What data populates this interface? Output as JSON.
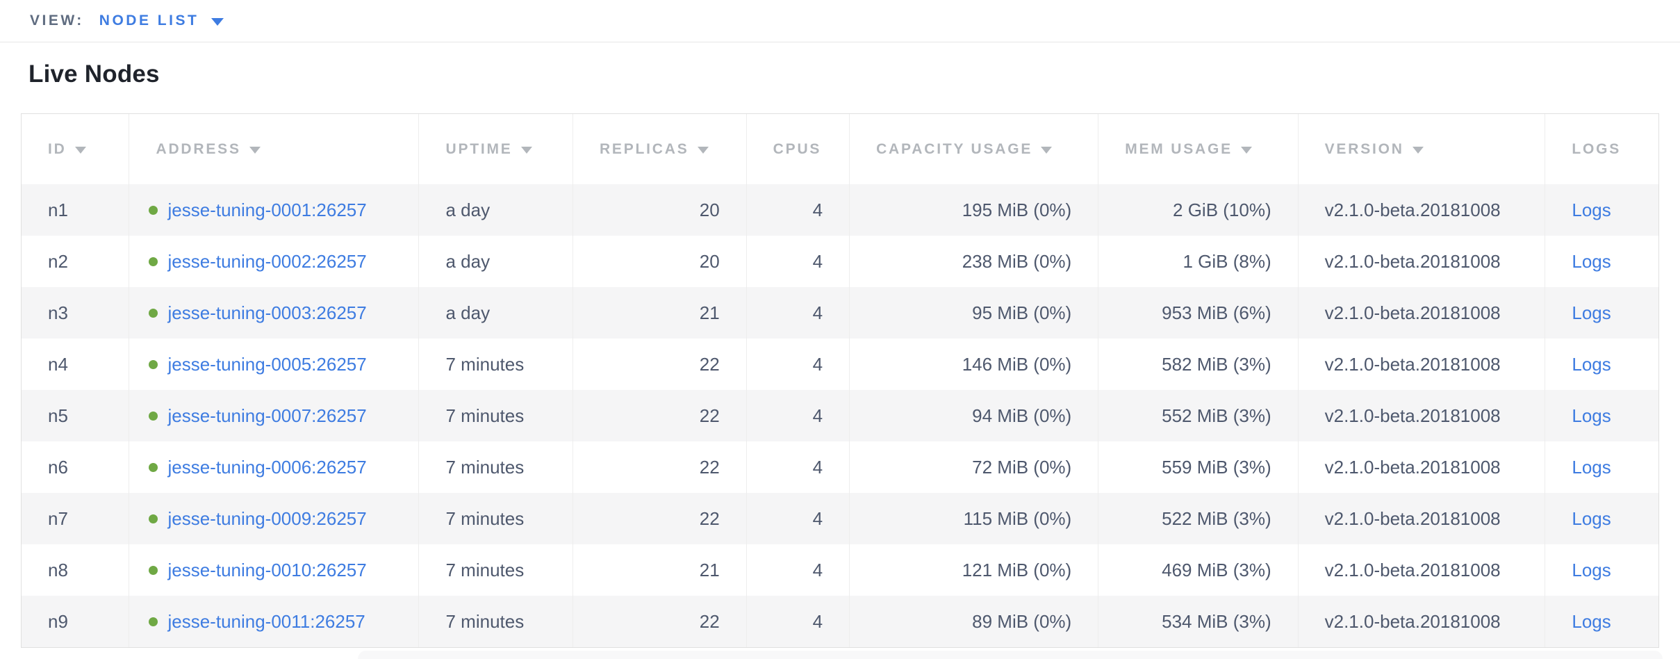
{
  "view_bar": {
    "label": "VIEW:",
    "selected": "NODE LIST",
    "dropdown_icon": "triangle-down-icon"
  },
  "page": {
    "title": "Live Nodes"
  },
  "table": {
    "columns": [
      {
        "key": "id",
        "label": "ID",
        "sortable": true
      },
      {
        "key": "address",
        "label": "ADDRESS",
        "sortable": true
      },
      {
        "key": "uptime",
        "label": "UPTIME",
        "sortable": true
      },
      {
        "key": "replicas",
        "label": "REPLICAS",
        "sortable": true
      },
      {
        "key": "cpus",
        "label": "CPUS",
        "sortable": false
      },
      {
        "key": "capacity",
        "label": "CAPACITY USAGE",
        "sortable": true
      },
      {
        "key": "mem",
        "label": "MEM USAGE",
        "sortable": true
      },
      {
        "key": "version",
        "label": "VERSION",
        "sortable": true
      },
      {
        "key": "logs",
        "label": "LOGS",
        "sortable": false
      }
    ],
    "rows": [
      {
        "id": "n1",
        "status": "live",
        "address": "jesse-tuning-0001:26257",
        "uptime": "a day",
        "replicas": "20",
        "cpus": "4",
        "capacity": "195 MiB (0%)",
        "mem": "2 GiB (10%)",
        "version": "v2.1.0-beta.20181008",
        "logs": "Logs"
      },
      {
        "id": "n2",
        "status": "live",
        "address": "jesse-tuning-0002:26257",
        "uptime": "a day",
        "replicas": "20",
        "cpus": "4",
        "capacity": "238 MiB (0%)",
        "mem": "1 GiB (8%)",
        "version": "v2.1.0-beta.20181008",
        "logs": "Logs"
      },
      {
        "id": "n3",
        "status": "live",
        "address": "jesse-tuning-0003:26257",
        "uptime": "a day",
        "replicas": "21",
        "cpus": "4",
        "capacity": "95 MiB (0%)",
        "mem": "953 MiB (6%)",
        "version": "v2.1.0-beta.20181008",
        "logs": "Logs"
      },
      {
        "id": "n4",
        "status": "live",
        "address": "jesse-tuning-0005:26257",
        "uptime": "7 minutes",
        "replicas": "22",
        "cpus": "4",
        "capacity": "146 MiB (0%)",
        "mem": "582 MiB (3%)",
        "version": "v2.1.0-beta.20181008",
        "logs": "Logs"
      },
      {
        "id": "n5",
        "status": "live",
        "address": "jesse-tuning-0007:26257",
        "uptime": "7 minutes",
        "replicas": "22",
        "cpus": "4",
        "capacity": "94 MiB (0%)",
        "mem": "552 MiB (3%)",
        "version": "v2.1.0-beta.20181008",
        "logs": "Logs"
      },
      {
        "id": "n6",
        "status": "live",
        "address": "jesse-tuning-0006:26257",
        "uptime": "7 minutes",
        "replicas": "22",
        "cpus": "4",
        "capacity": "72 MiB (0%)",
        "mem": "559 MiB (3%)",
        "version": "v2.1.0-beta.20181008",
        "logs": "Logs"
      },
      {
        "id": "n7",
        "status": "live",
        "address": "jesse-tuning-0009:26257",
        "uptime": "7 minutes",
        "replicas": "22",
        "cpus": "4",
        "capacity": "115 MiB (0%)",
        "mem": "522 MiB (3%)",
        "version": "v2.1.0-beta.20181008",
        "logs": "Logs"
      },
      {
        "id": "n8",
        "status": "live",
        "address": "jesse-tuning-0010:26257",
        "uptime": "7 minutes",
        "replicas": "21",
        "cpus": "4",
        "capacity": "121 MiB (0%)",
        "mem": "469 MiB (3%)",
        "version": "v2.1.0-beta.20181008",
        "logs": "Logs"
      },
      {
        "id": "n9",
        "status": "live",
        "address": "jesse-tuning-0011:26257",
        "uptime": "7 minutes",
        "replicas": "22",
        "cpus": "4",
        "capacity": "89 MiB (0%)",
        "mem": "534 MiB (3%)",
        "version": "v2.1.0-beta.20181008",
        "logs": "Logs"
      }
    ]
  },
  "colors": {
    "link_blue": "#3e7ce1",
    "live_green": "#6fa844",
    "header_gray": "#b2b6bb",
    "row_stripe": "#f5f5f6"
  }
}
